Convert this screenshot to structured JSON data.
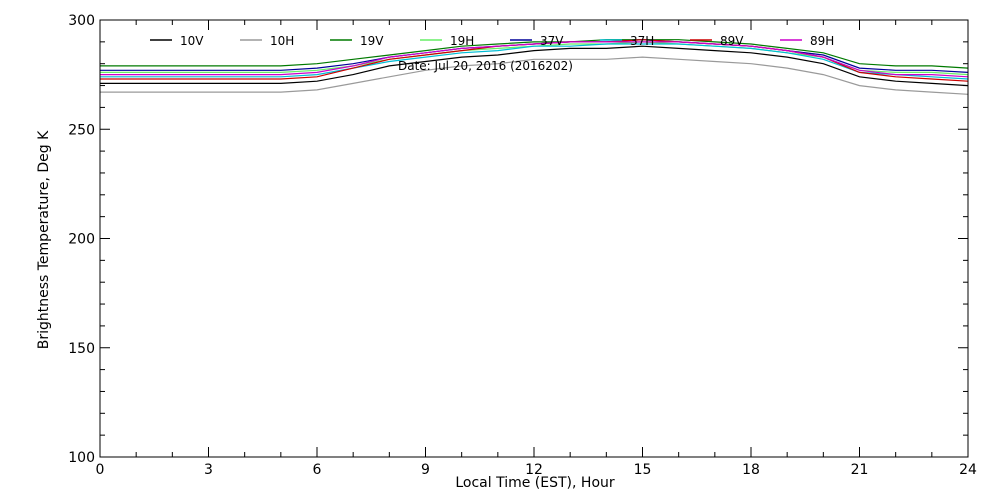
{
  "chart_data": {
    "type": "line",
    "title": "",
    "annotation": "Date: Jul 20, 2016 (2016202)",
    "xlabel": "Local Time (EST), Hour",
    "ylabel": "Brightness Temperature, Deg K",
    "xlim": [
      0,
      24
    ],
    "ylim": [
      100,
      300
    ],
    "xticks": [
      0,
      3,
      6,
      9,
      12,
      15,
      18,
      21,
      24
    ],
    "yticks": [
      100,
      150,
      200,
      250,
      300
    ],
    "grid": false,
    "legend_position": "top",
    "x": [
      0,
      1,
      2,
      3,
      4,
      5,
      6,
      7,
      8,
      9,
      10,
      11,
      12,
      13,
      14,
      15,
      16,
      17,
      18,
      19,
      20,
      21,
      22,
      23,
      24
    ],
    "series": [
      {
        "name": "10V",
        "color": "#000000",
        "values": [
          271,
          271,
          271,
          271,
          271,
          271,
          272,
          275,
          279,
          281,
          283,
          284,
          286,
          287,
          287,
          288,
          287,
          286,
          285,
          283,
          280,
          274,
          272,
          271,
          270
        ]
      },
      {
        "name": "10H",
        "color": "#9a9a9a",
        "values": [
          267,
          267,
          267,
          267,
          267,
          267,
          268,
          271,
          274,
          277,
          279,
          280,
          282,
          282,
          282,
          283,
          282,
          281,
          280,
          278,
          275,
          270,
          268,
          267,
          266
        ]
      },
      {
        "name": "19V",
        "color": "#007a00",
        "values": [
          279,
          279,
          279,
          279,
          279,
          279,
          280,
          282,
          284,
          286,
          288,
          289,
          290,
          290,
          291,
          291,
          291,
          290,
          289,
          287,
          285,
          280,
          279,
          279,
          278
        ]
      },
      {
        "name": "19H",
        "color": "#66ee66",
        "values": [
          276,
          276,
          276,
          276,
          276,
          276,
          277,
          279,
          282,
          284,
          286,
          287,
          288,
          289,
          289,
          290,
          289,
          288,
          287,
          285,
          283,
          277,
          276,
          276,
          275
        ]
      },
      {
        "name": "37V",
        "color": "#000099",
        "values": [
          277,
          277,
          277,
          277,
          277,
          277,
          278,
          280,
          283,
          285,
          287,
          288,
          289,
          290,
          290,
          291,
          290,
          289,
          288,
          286,
          284,
          278,
          277,
          277,
          276
        ]
      },
      {
        "name": "37H",
        "color": "#00bcd4",
        "values": [
          274,
          274,
          274,
          274,
          274,
          274,
          275,
          278,
          281,
          283,
          285,
          286,
          288,
          288,
          289,
          289,
          289,
          288,
          287,
          285,
          282,
          276,
          275,
          274,
          273
        ]
      },
      {
        "name": "89V",
        "color": "#cc0000",
        "values": [
          273,
          273,
          273,
          273,
          273,
          273,
          274,
          278,
          282,
          284,
          286,
          288,
          289,
          290,
          290,
          291,
          290,
          289,
          288,
          286,
          283,
          276,
          274,
          273,
          272
        ]
      },
      {
        "name": "89H",
        "color": "#cc00cc",
        "values": [
          275,
          275,
          275,
          275,
          275,
          275,
          276,
          279,
          283,
          285,
          287,
          288,
          289,
          290,
          290,
          290,
          290,
          289,
          288,
          286,
          283,
          277,
          275,
          275,
          274
        ]
      }
    ]
  }
}
